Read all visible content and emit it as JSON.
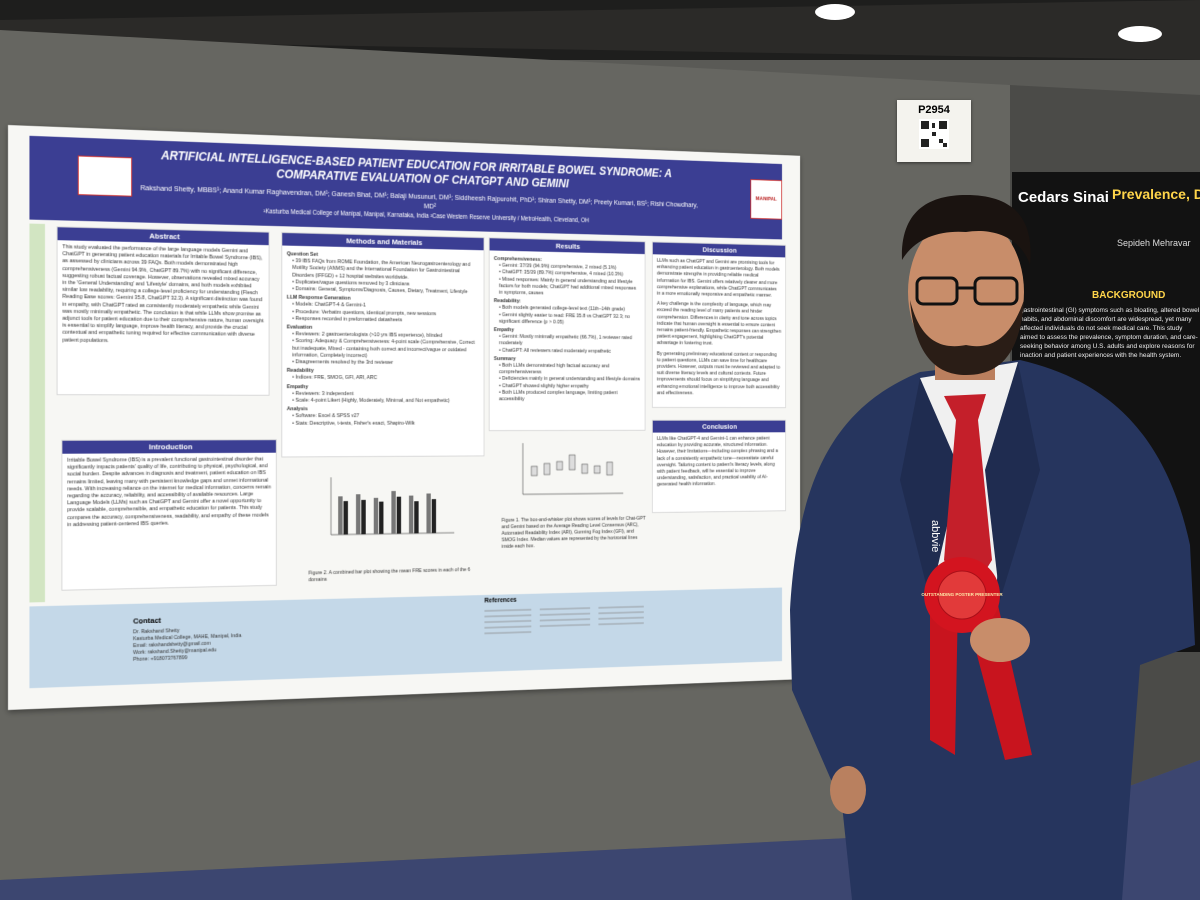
{
  "booth_number": "P2954",
  "poster": {
    "title": "ARTIFICIAL INTELLIGENCE-BASED PATIENT EDUCATION FOR IRRITABLE BOWEL SYNDROME: A COMPARATIVE EVALUATION OF CHATGPT AND GEMINI",
    "authors": "Rakshand Shetty, MBBS¹; Anand Kumar Raghavendran, DM¹; Ganesh Bhat, DM¹; Balaji Musunuri, DM¹; Siddheesh Rajpurohit, PhD¹; Shiran Shetty, DM¹; Preety Kumari, BS¹; Rishi Chowdhary, MD²",
    "affiliations": "¹Kasturba Medical College of Manipal, Manipal, Karnataka, India ²Case Western Reserve University / MetroHealth, Cleveland, OH",
    "logo_right": "MANIPAL",
    "abstract": {
      "heading": "Abstract",
      "body": "This study evaluated the performance of the large language models Gemini and ChatGPT in generating patient education materials for Irritable Bowel Syndrome (IBS), as assessed by clinicians across 39 FAQs. Both models demonstrated high comprehensiveness (Gemini 94.9%, ChatGPT 89.7%) with no significant difference, suggesting robust factual coverage. However, observations revealed mixed accuracy in the 'General Understanding' and 'Lifestyle' domains, and both models exhibited similar low readability, requiring a college-level proficiency for understanding (Flesch Reading Ease scores: Gemini 35.8, ChatGPT 32.3). A significant distinction was found in empathy, with ChatGPT rated as consistently moderately empathetic while Gemini was mostly minimally empathetic. The conclusion is that while LLMs show promise as adjunct tools for patient education due to their comprehensive nature, human oversight is essential to simplify language, improve health literacy, and provide the crucial contextual and empathetic tuning required for effective communication with diverse patient populations."
    },
    "introduction": {
      "heading": "Introduction",
      "body": "Irritable Bowel Syndrome (IBS) is a prevalent functional gastrointestinal disorder that significantly impacts patients' quality of life, contributing to physical, psychological, and social burden. Despite advances in diagnosis and treatment, patient education on IBS remains limited, leaving many with persistent knowledge gaps and unmet informational needs. With increasing reliance on the internet for medical information, concerns remain regarding the accuracy, reliability, and accessibility of available resources. Large Language Models (LLMs) such as ChatGPT and Gemini offer a novel opportunity to provide scalable, comprehensible, and empathetic education for patients. This study compares the accuracy, comprehensiveness, readability, and empathy of these models in addressing patient-centered IBS queries."
    },
    "methods": {
      "heading": "Methods and Materials",
      "groups": [
        {
          "subheading": "Question Set",
          "items": [
            "39 IBS FAQs from ROME Foundation, the American Neurogastroenterology and Motility Society (ANMS) and the International Foundation for Gastrointestinal Disorders (IFFGD) + 12 hospital websites worldwide.",
            "Duplicates/vague questions removed by 3 clinicians",
            "Domains: General, Symptoms/Diagnosis, Causes, Dietary, Treatment, Lifestyle"
          ]
        },
        {
          "subheading": "LLM Response Generation",
          "items": [
            "Models: ChatGPT-4 & Gemini-1",
            "Procedure: Verbatim questions, identical prompts, new sessions",
            "Responses recorded in preformatted datasheets"
          ]
        },
        {
          "subheading": "Evaluation",
          "items": [
            "Reviewers: 2 gastroenterologists (>10 yrs IBS experience), blinded",
            "Scoring: Adequacy & Comprehensiveness: 4-point scale (Comprehensive, Correct but inadequate, Mixed - containing both correct and incorrect/vague or outdated information, Completely incorrect)",
            "Disagreements resolved by the 3rd reviewer"
          ]
        },
        {
          "subheading": "Readability",
          "items": [
            "Indices: FRE, SMOG, GFI, ARI, ARC"
          ]
        },
        {
          "subheading": "Empathy",
          "items": [
            "Reviewers: 3 independent",
            "Scale: 4-point Likert (Highly, Moderately, Minimal, and Not empathetic)"
          ]
        },
        {
          "subheading": "Analysis",
          "items": [
            "Software: Excel & SPSS v27",
            "Stats: Descriptive, t-tests, Fisher's exact, Shapiro-Wilk"
          ]
        }
      ]
    },
    "results": {
      "heading": "Results",
      "groups": [
        {
          "subheading": "Comprehensiveness:",
          "items": [
            "Gemini: 37/39 (94.9%) comprehensive, 2 mixed (5.1%)",
            "ChatGPT: 35/39 (89.7%) comprehensive, 4 mixed (10.3%)",
            "Mixed responses: Mainly in general understanding and lifestyle factors for both models; ChatGPT had additional mixed responses in symptoms, causes"
          ]
        },
        {
          "subheading": "Readability:",
          "items": [
            "Both models generated college-level text (11th–14th grade)",
            "Gemini slightly easier to read: FRE 35.8 vs ChatGPT 32.3; no significant difference (p > 0.05)"
          ]
        },
        {
          "subheading": "Empathy",
          "items": [
            "Gemini: Mostly minimally empathetic (66.7%), 1 reviewer rated moderately",
            "ChatGPT: All reviewers rated moderately empathetic"
          ]
        },
        {
          "subheading": "Summary",
          "items": [
            "Both LLMs demonstrated high factual accuracy and comprehensiveness",
            "Deficiencies mainly in general understanding and lifestyle domains",
            "ChatGPT showed slightly higher empathy",
            "Both LLMs produced complex language, limiting patient accessibility"
          ]
        }
      ]
    },
    "figure1_caption": "Figure 1. The box-and-whisker plot shows scores of levels for Chat-GPT and Gemini based on the Average Reading Level Consensus (ARC), Automated Readability Index (ARI), Gunning Fog Index (GFI), and SMOG Index. Median values are represented by the horizontal lines inside each box.",
    "figure2_caption": "Figure 2. A combined bar plot showing the mean FRE scores in each of the 6 domains",
    "discussion": {
      "heading": "Discussion",
      "paragraphs": [
        "LLMs such as ChatGPT and Gemini are promising tools for enhancing patient education in gastroenterology. Both models demonstrate strengths in providing reliable medical information for IBS. Gemini offers relatively clearer and more comprehensive explanations, while ChatGPT communicates in a more emotionally responsive and empathetic manner.",
        "A key challenge is the complexity of language, which may exceed the reading level of many patients and hinder comprehension. Differences in clarity and tone across topics indicate that human oversight is essential to ensure content remains patient-friendly. Empathetic responses can strengthen patient engagement, highlighting ChatGPT's potential advantage in fostering trust.",
        "By generating preliminary educational content or responding to patient questions, LLMs can save time for healthcare providers. However, outputs must be reviewed and adapted to suit diverse literacy levels and cultural contexts. Future improvements should focus on simplifying language and enhancing emotional intelligence to improve both accessibility and effectiveness."
      ]
    },
    "conclusion": {
      "heading": "Conclusion",
      "body": "LLMs like ChatGPT-4 and Gemini-1 can enhance patient education by providing accurate, structured information. However, their limitations—including complex phrasing and a lack of a consistently empathetic tone—necessitate careful oversight. Tailoring content to patient's literacy levels, along with patient feedback, will be essential to improve understanding, satisfaction, and practical usability of AI-generated health information."
    },
    "references_heading": "References",
    "contact": {
      "heading": "Contact",
      "lines": [
        "Dr. Rakshand Shetty",
        "Kasturba Medical College, MAHE, Manipal, India",
        "Email: rakshandshetty@gmail.com",
        "Work: rakshand.Shetty@manipal.edu",
        "Phone: +918073767899"
      ]
    }
  },
  "neighbor_poster": {
    "logo": "Cedars Sinai",
    "title": "Prevalence, D",
    "author": "Sepideh Mehravar",
    "heading": "BACKGROUND",
    "body": "gastrointestinal (GI) symptoms such as bloating, altered bowel habits, and abdominal discomfort are widespread, yet many affected individuals do not seek medical care. This study aimed to assess the prevalence, symptom duration, and care-seeking behavior among U.S. adults and explore reasons for inaction and patient experiences with the health system."
  },
  "ribbon": "OUTSTANDING POSTER PRESENTER",
  "lanyard": "abbvie"
}
